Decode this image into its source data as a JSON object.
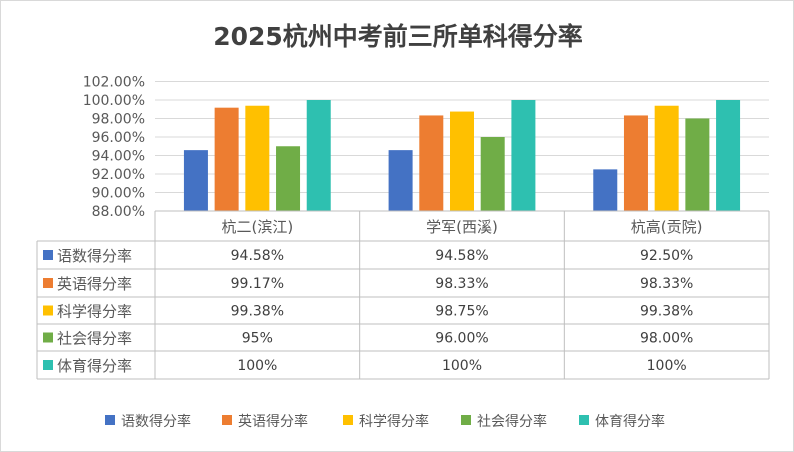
{
  "chart_data": {
    "type": "bar",
    "title": "2025杭州中考前三所单科得分率",
    "categories": [
      "杭二(滨江)",
      "学军(西溪)",
      "杭高(贡院)"
    ],
    "ylim": [
      88,
      102
    ],
    "yticks": [
      "88.00%",
      "90.00%",
      "92.00%",
      "94.00%",
      "96.00%",
      "98.00%",
      "100.00%",
      "102.00%"
    ],
    "grid": true,
    "legend_placement": "bottom",
    "data_table": true,
    "series": [
      {
        "name": "语数得分率",
        "color": "#4472C4",
        "values": [
          94.58,
          94.58,
          92.5
        ],
        "labels": [
          "94.58%",
          "94.58%",
          "92.50%"
        ]
      },
      {
        "name": "英语得分率",
        "color": "#ED7D31",
        "values": [
          99.17,
          98.33,
          98.33
        ],
        "labels": [
          "99.17%",
          "98.33%",
          "98.33%"
        ]
      },
      {
        "name": "科学得分率",
        "color": "#FFC000",
        "values": [
          99.38,
          98.75,
          99.38
        ],
        "labels": [
          "99.38%",
          "98.75%",
          "99.38%"
        ]
      },
      {
        "name": "社会得分率",
        "color": "#70AD47",
        "values": [
          95,
          96,
          98
        ],
        "labels": [
          "95%",
          "96.00%",
          "98.00%"
        ]
      },
      {
        "name": "体育得分率",
        "color": "#2EC0B0",
        "values": [
          100,
          100,
          100
        ],
        "labels": [
          "100%",
          "100%",
          "100%"
        ]
      }
    ]
  }
}
